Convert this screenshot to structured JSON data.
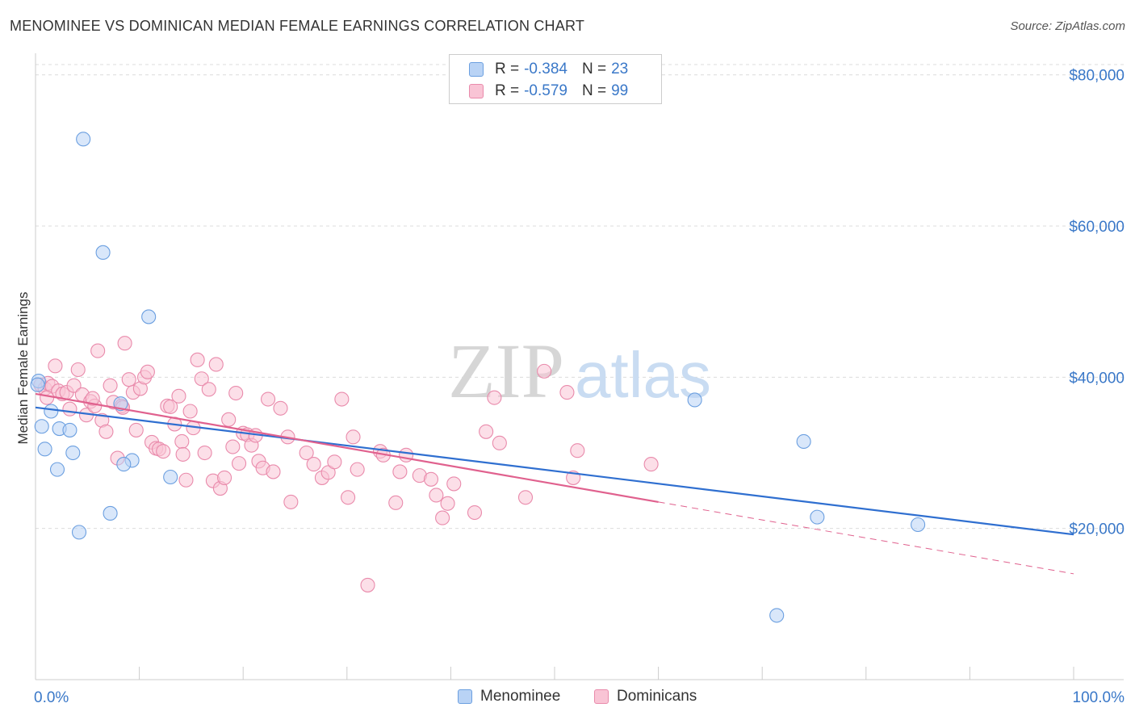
{
  "title": "MENOMINEE VS DOMINICAN MEDIAN FEMALE EARNINGS CORRELATION CHART",
  "source": "Source: ZipAtlas.com",
  "watermark": {
    "zip": "ZIP",
    "atlas": "atlas"
  },
  "legend": {
    "r_label": "R =",
    "n_label": "N =",
    "rows": [
      {
        "name": "Menominee",
        "r": "-0.384",
        "n": "23",
        "fill": "#b9d3f5",
        "stroke": "#6b9fe0"
      },
      {
        "name": "Dominicans",
        "r": "-0.579",
        "n": "99",
        "fill": "#f9c4d5",
        "stroke": "#e98aab"
      }
    ]
  },
  "chart_data": {
    "type": "scatter",
    "title": "MENOMINEE VS DOMINICAN MEDIAN FEMALE EARNINGS CORRELATION CHART",
    "xlabel": "",
    "ylabel": "Median Female Earnings",
    "xlim": [
      0,
      100
    ],
    "ylim": [
      0,
      82000
    ],
    "x_tick_labels": [
      "0.0%",
      "100.0%"
    ],
    "y_ticks": [
      20000,
      40000,
      60000,
      80000
    ],
    "y_tick_labels": [
      "$20,000",
      "$40,000",
      "$60,000",
      "$80,000"
    ],
    "grid": true,
    "series": [
      {
        "name": "Menominee",
        "color": "#6b9fe0",
        "fill": "#b9d3f5",
        "line_color": "#2f6fd0",
        "trend": {
          "x0": 0,
          "y0": 36000,
          "x1": 100,
          "y1": 19200
        },
        "points": [
          [
            4.6,
            71500
          ],
          [
            6.5,
            56500
          ],
          [
            10.9,
            48000
          ],
          [
            0.3,
            39500
          ],
          [
            8.2,
            36500
          ],
          [
            1.5,
            35500
          ],
          [
            0.6,
            33500
          ],
          [
            2.3,
            33200
          ],
          [
            3.3,
            33000
          ],
          [
            0.9,
            30500
          ],
          [
            3.6,
            30000
          ],
          [
            9.3,
            29000
          ],
          [
            8.5,
            28500
          ],
          [
            2.1,
            27800
          ],
          [
            13.0,
            26800
          ],
          [
            7.2,
            22000
          ],
          [
            4.2,
            19500
          ],
          [
            63.5,
            37000
          ],
          [
            74.0,
            31500
          ],
          [
            75.3,
            21500
          ],
          [
            85.0,
            20500
          ],
          [
            71.4,
            8500
          ],
          [
            0.2,
            39000
          ]
        ]
      },
      {
        "name": "Dominicans",
        "color": "#e98aab",
        "fill": "#f9c4d5",
        "line_color": "#e0618e",
        "trend": {
          "x0": 0,
          "y0": 37800,
          "x1": 60,
          "y1": 23500
        },
        "trend_dashed": {
          "x0": 60,
          "y0": 23500,
          "x1": 100,
          "y1": 14000
        },
        "points": [
          [
            0.5,
            39000
          ],
          [
            0.9,
            38500
          ],
          [
            1.2,
            39200
          ],
          [
            1.6,
            38800
          ],
          [
            1.9,
            41500
          ],
          [
            2.2,
            38200
          ],
          [
            2.6,
            37800
          ],
          [
            3.0,
            38000
          ],
          [
            3.3,
            35800
          ],
          [
            3.7,
            38900
          ],
          [
            4.1,
            41000
          ],
          [
            4.5,
            37700
          ],
          [
            4.9,
            35000
          ],
          [
            5.3,
            36800
          ],
          [
            5.7,
            36200
          ],
          [
            6.0,
            43500
          ],
          [
            6.4,
            34300
          ],
          [
            6.8,
            32800
          ],
          [
            7.2,
            38900
          ],
          [
            7.5,
            36700
          ],
          [
            7.9,
            29300
          ],
          [
            8.3,
            36200
          ],
          [
            8.6,
            44500
          ],
          [
            9.0,
            39700
          ],
          [
            9.4,
            38000
          ],
          [
            9.7,
            33000
          ],
          [
            10.1,
            38500
          ],
          [
            10.5,
            40000
          ],
          [
            10.8,
            40700
          ],
          [
            11.2,
            31400
          ],
          [
            11.6,
            30600
          ],
          [
            11.9,
            30500
          ],
          [
            12.3,
            30200
          ],
          [
            12.7,
            36200
          ],
          [
            13.0,
            36100
          ],
          [
            13.4,
            33800
          ],
          [
            13.8,
            37500
          ],
          [
            14.1,
            31500
          ],
          [
            14.5,
            26400
          ],
          [
            14.9,
            35500
          ],
          [
            15.2,
            33300
          ],
          [
            15.6,
            42300
          ],
          [
            16.0,
            39800
          ],
          [
            16.3,
            30000
          ],
          [
            16.7,
            38400
          ],
          [
            17.1,
            26300
          ],
          [
            17.4,
            41700
          ],
          [
            17.8,
            25300
          ],
          [
            18.2,
            26700
          ],
          [
            18.6,
            34400
          ],
          [
            19.0,
            30800
          ],
          [
            19.3,
            37900
          ],
          [
            19.6,
            28600
          ],
          [
            20.0,
            32600
          ],
          [
            20.4,
            32400
          ],
          [
            20.8,
            31000
          ],
          [
            21.2,
            32300
          ],
          [
            21.5,
            28900
          ],
          [
            21.9,
            28000
          ],
          [
            22.4,
            37100
          ],
          [
            22.9,
            27500
          ],
          [
            23.6,
            35900
          ],
          [
            24.3,
            32100
          ],
          [
            24.6,
            23500
          ],
          [
            26.1,
            30000
          ],
          [
            26.8,
            28500
          ],
          [
            27.6,
            26700
          ],
          [
            28.2,
            27400
          ],
          [
            28.8,
            28800
          ],
          [
            29.5,
            37100
          ],
          [
            30.1,
            24100
          ],
          [
            30.6,
            32100
          ],
          [
            31.0,
            27800
          ],
          [
            32.0,
            12500
          ],
          [
            33.2,
            30200
          ],
          [
            33.5,
            29700
          ],
          [
            34.7,
            23400
          ],
          [
            35.1,
            27500
          ],
          [
            35.7,
            29700
          ],
          [
            37.0,
            27000
          ],
          [
            38.1,
            26500
          ],
          [
            38.6,
            24400
          ],
          [
            39.2,
            21400
          ],
          [
            39.7,
            23300
          ],
          [
            40.3,
            25900
          ],
          [
            42.3,
            22100
          ],
          [
            43.4,
            32800
          ],
          [
            44.2,
            37300
          ],
          [
            44.7,
            31300
          ],
          [
            47.2,
            24100
          ],
          [
            49.0,
            40800
          ],
          [
            51.2,
            38000
          ],
          [
            51.8,
            26700
          ],
          [
            52.2,
            30300
          ],
          [
            59.3,
            28500
          ],
          [
            14.2,
            29800
          ],
          [
            8.4,
            36000
          ],
          [
            1.1,
            37300
          ],
          [
            5.5,
            37200
          ]
        ]
      }
    ]
  },
  "bottom_legend": {
    "items": [
      "Menominee",
      "Dominicans"
    ]
  }
}
